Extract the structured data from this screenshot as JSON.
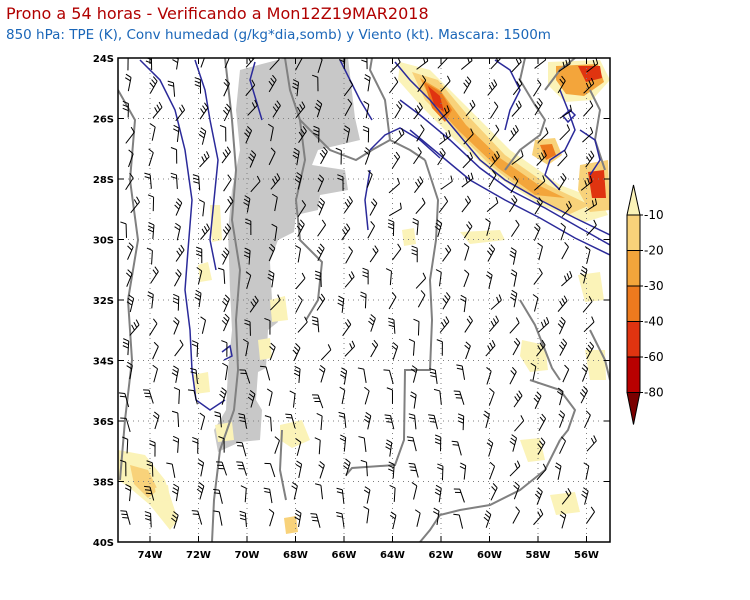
{
  "header": {
    "title": "Prono a 54 horas - Verificando a Mon12Z19MAR2018",
    "subtitle": "850 hPa: TPE (K), Conv humedad (g/kg*dia,somb) y Viento (kt). Mascara: 1500m"
  },
  "axes": {
    "lat_labels": [
      "24S",
      "26S",
      "28S",
      "30S",
      "32S",
      "34S",
      "36S",
      "38S",
      "40S"
    ],
    "lon_labels": [
      "74W",
      "72W",
      "70W",
      "68W",
      "66W",
      "64W",
      "62W",
      "60W",
      "58W",
      "56W"
    ]
  },
  "colorbar": {
    "labels": [
      "-10",
      "-20",
      "-30",
      "-40",
      "-60",
      "-80"
    ],
    "colors": [
      "#fbf3b8",
      "#f8d27a",
      "#f3a53b",
      "#ed7a1e",
      "#e03410",
      "#b80000",
      "#7a0000"
    ]
  },
  "colors": {
    "mask": "#c8c8c8",
    "contour": "#2b2a9a",
    "border": "#808080",
    "barb": "#000000",
    "grid": "#808080"
  }
}
